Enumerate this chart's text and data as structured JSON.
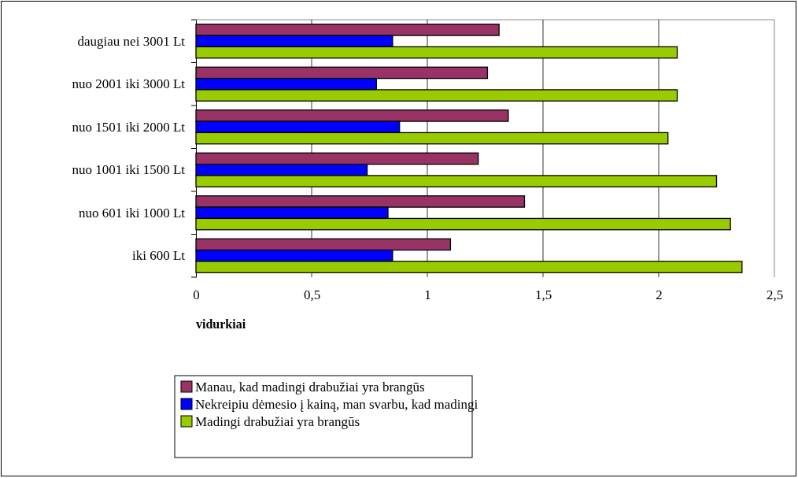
{
  "chart_data": {
    "type": "bar",
    "orientation": "horizontal",
    "xlabel": "vidurkiai",
    "categories": [
      "daugiau nei 3001 Lt",
      "nuo 2001 iki 3000 Lt",
      "nuo 1501 iki 2000 Lt",
      "nuo 1001 iki 1500 Lt",
      "nuo 601 iki 1000 Lt",
      "iki 600 Lt"
    ],
    "series": [
      {
        "name": "Manau, kad madingi drabužiai yra brangūs",
        "color": "#993366",
        "values": [
          1.31,
          1.26,
          1.35,
          1.22,
          1.42,
          1.1
        ]
      },
      {
        "name": "Nekreipiu dėmesio į kainą, man svarbu, kad madingi",
        "color": "#0000ff",
        "values": [
          0.85,
          0.78,
          0.88,
          0.74,
          0.83,
          0.85
        ]
      },
      {
        "name": "Madingi drabužiai yra brangūs",
        "color": "#99cc00",
        "values": [
          2.08,
          2.08,
          2.04,
          2.25,
          2.31,
          2.36
        ]
      }
    ],
    "xlim": [
      0,
      2.5
    ],
    "xticks": [
      0,
      {
        "value": 0.5,
        "label": "0,5"
      },
      1,
      {
        "value": 1.5,
        "label": "1,5"
      },
      2,
      {
        "value": 2.5,
        "label": "2,5"
      }
    ],
    "grid": "x",
    "legend": "bottom left"
  }
}
